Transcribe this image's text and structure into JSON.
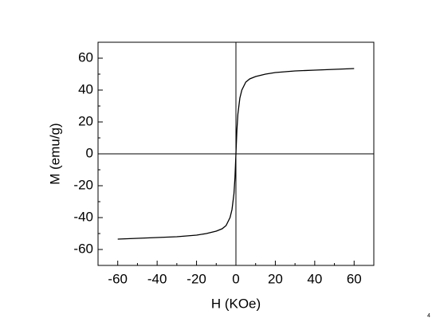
{
  "chart_data": {
    "type": "line",
    "x_label": "H (KOe)",
    "y_label": "M (emu/g)",
    "annotation": "4",
    "x": [
      -60,
      -50,
      -40,
      -30,
      -20,
      -15,
      -10,
      -7,
      -5,
      -3,
      -2,
      -1,
      -0.5,
      0,
      0.5,
      1,
      2,
      3,
      5,
      7,
      10,
      15,
      20,
      30,
      40,
      50,
      60
    ],
    "series": [
      {
        "name": "M",
        "color": "#000000",
        "values": [
          -53.5,
          -53,
          -52.5,
          -52,
          -51,
          -50,
          -48.5,
          -47,
          -45,
          -40,
          -35,
          -25,
          -15,
          0,
          15,
          25,
          35,
          40,
          45,
          47,
          48.5,
          50,
          51,
          52,
          52.5,
          53,
          53.5
        ]
      }
    ],
    "xlim": [
      -70,
      70
    ],
    "ylim": [
      -70,
      70
    ],
    "xticks": [
      -60,
      -40,
      -20,
      0,
      20,
      40,
      60
    ],
    "yticks": [
      -60,
      -40,
      -20,
      0,
      20,
      40,
      60
    ],
    "xminorticks": [
      -70,
      -50,
      -30,
      -10,
      10,
      30,
      50,
      70
    ],
    "yminorticks": [
      -70,
      -50,
      -30,
      -10,
      10,
      30,
      50,
      70
    ],
    "zero_lines": true
  }
}
